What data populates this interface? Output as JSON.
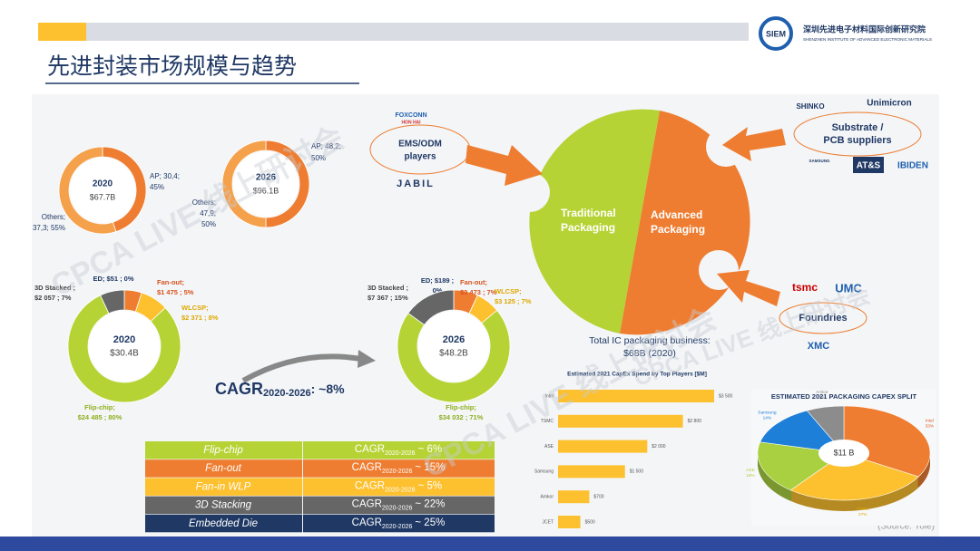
{
  "header": {
    "title": "先进封装市场规模与趋势",
    "logo": "SIEM",
    "org": "深圳先进电子材料国际创新研究院",
    "org_en": "SHENZHEN INSTITUTE OF ADVANCED ELECTRONIC MATERIALS"
  },
  "watermark": "CPCA LIVE 线上研讨会",
  "chart_data": [
    {
      "type": "donut",
      "center_label": "2020",
      "center_value": "$67.7B",
      "categories": [
        "AP",
        "Others"
      ],
      "label_lines": [
        [
          "AP; 30,4;",
          "45%"
        ],
        [
          "Others;",
          "37,3; 55%"
        ]
      ],
      "values": [
        45,
        55
      ],
      "colors": [
        "#ee7d31",
        "#f5a04a"
      ]
    },
    {
      "type": "donut",
      "center_label": "2026",
      "center_value": "$96.1B",
      "categories": [
        "AP",
        "Others"
      ],
      "label_lines": [
        [
          "AP; 48,2;",
          "50%"
        ],
        [
          "Others;",
          "47,9;",
          "50%"
        ]
      ],
      "values": [
        50,
        50
      ],
      "colors": [
        "#ee7d31",
        "#f5a04a"
      ]
    },
    {
      "type": "donut",
      "center_label": "2020",
      "center_value": "$30.4B",
      "categories": [
        "ED",
        "Fan-out",
        "WLCSP",
        "Flip-chip",
        "3D Stacked"
      ],
      "label_lines": [
        [
          "ED;  $51 ; 0%"
        ],
        [
          "Fan-out;",
          "$1 475 ; 5%"
        ],
        [
          "WLCSP;",
          "$2 371 ; 8%"
        ],
        [
          "Flip-chip;",
          "$24 485 ; 80%"
        ],
        [
          "3D Stacked ;",
          "$2 057 ; 7%"
        ]
      ],
      "values": [
        0,
        5,
        8,
        80,
        7
      ],
      "colors": [
        "#1f3864",
        "#ee7d31",
        "#fdc02f",
        "#b5d334",
        "#666666"
      ]
    },
    {
      "type": "donut",
      "center_label": "2026",
      "center_value": "$48.2B",
      "categories": [
        "ED",
        "Fan-out",
        "WLCSP",
        "Flip-chip",
        "3D Stacked"
      ],
      "label_lines": [
        [
          "ED; $189 ;",
          "0%"
        ],
        [
          "Fan-out;",
          "$3 473 ; 7%"
        ],
        [
          "WLCSP;",
          "$3 125 ; 7%"
        ],
        [
          "Flip-chip;",
          "$34 032 ; 71%"
        ],
        [
          "3D Stacked ;",
          "$7 367 ; 15%"
        ]
      ],
      "values": [
        0,
        7,
        7,
        71,
        15
      ],
      "colors": [
        "#1f3864",
        "#ee7d31",
        "#fdc02f",
        "#b5d334",
        "#666666"
      ]
    },
    {
      "type": "bar",
      "orientation": "horizontal",
      "title": "Estimated 2021 CapEx Spend by Top Players [$M]",
      "categories": [
        "Intel",
        "TSMC",
        "ASE",
        "Samsung",
        "Amkor",
        "JCET"
      ],
      "values": [
        3500,
        2800,
        2000,
        1500,
        700,
        500
      ],
      "value_labels": [
        "$3 500",
        "$2 800",
        "$2 000",
        "$1 500",
        "$700",
        "$500"
      ],
      "color": "#fdc02f"
    },
    {
      "type": "pie",
      "title": "ESTIMATED 2021 PACKAGING CAPEX SPLIT",
      "center_label": "$11 B",
      "categories": [
        "Intel",
        "TSMC",
        "ASE",
        "Samsung",
        "Amkor"
      ],
      "values": [
        33,
        27,
        18,
        14,
        7
      ],
      "value_labels": [
        "33%",
        "27%",
        "18%",
        "14%",
        "7%"
      ],
      "colors": [
        "#ee7d31",
        "#fdc02f",
        "#a9d040",
        "#1e7fd8",
        "#8c8c8c"
      ]
    }
  ],
  "cagr": {
    "metric": "CAGR",
    "period": "2020-2026",
    "value": ": ~8%"
  },
  "table": {
    "rows": [
      [
        "Flip-chip",
        "CAGR",
        "2020-2026",
        "~ 6%"
      ],
      [
        "Fan-out",
        "CAGR",
        "2020-2026",
        "~ 15%"
      ],
      [
        "Fan-in WLP",
        "CAGR",
        "2020-2026",
        "~ 5%"
      ],
      [
        "3D Stacking",
        "CAGR",
        "2020-2026",
        "~ 22%"
      ],
      [
        "Embedded Die",
        "CAGR",
        "2020-2026",
        "~ 25%"
      ]
    ],
    "colors": [
      "#b5d334",
      "#ee7d31",
      "#fdc02f",
      "#666666",
      "#1f3864"
    ]
  },
  "diagram": {
    "traditional": [
      "Traditional",
      "Packaging"
    ],
    "advanced": [
      "Advanced",
      "Packaging"
    ],
    "ems": [
      "EMS/ODM",
      "players"
    ],
    "substrate": [
      "Substrate /",
      "PCB suppliers"
    ],
    "foundries": "Foundries",
    "companies": {
      "foxconn": "FOXCONN",
      "honhai": "HON HAI",
      "jabil": "JABIL",
      "shinko": "SHINKO",
      "unimicron": "Unimicron",
      "samsung": "SAMSUNG",
      "ats": "AT&S",
      "ibiden": "IBIDEN",
      "tsmc": "tsmc",
      "umc": "UMC",
      "xmc": "XMC"
    },
    "total": [
      "Total IC packaging business:",
      "$68B (2020)"
    ]
  },
  "source": "(Source: Yole)"
}
